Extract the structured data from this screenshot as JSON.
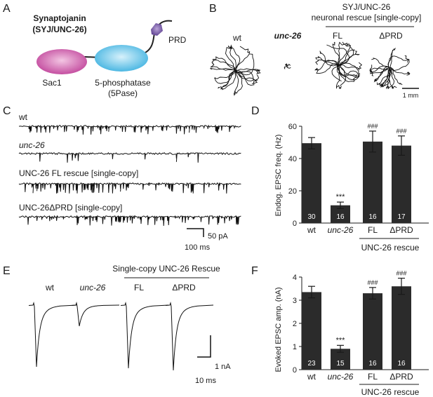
{
  "panels": {
    "A": {
      "letter": "A",
      "title_line1": "Synaptojanin",
      "title_line2": "(SYJ/UNC-26)",
      "labels": {
        "sac1": "Sac1",
        "phosphatase": "5-phosphatase",
        "phosphatase_abbr": "(5Pase)",
        "prd": "PRD"
      },
      "colors": {
        "sac1": "#c0439a",
        "phosphatase": "#3fb2e0",
        "prd": "#6a4b9a"
      }
    },
    "B": {
      "letter": "B",
      "header_line1": "SYJ/UNC-26",
      "header_line2": "neuronal rescue [single-copy]",
      "labels": {
        "wt": "wt",
        "unc26": "unc-26",
        "fl": "FL",
        "dprd": "ΔPRD"
      },
      "scale_label": "1 mm"
    },
    "C": {
      "letter": "C",
      "trace_labels": [
        "wt",
        "unc-26",
        "UNC-26 FL rescue [single-copy]",
        "UNC-26ΔPRD [single-copy]"
      ],
      "scale_y_label": "50 pA",
      "scale_x_label": "100 ms"
    },
    "D": {
      "letter": "D",
      "chart_data": {
        "type": "bar",
        "categories": [
          "wt",
          "unc-26",
          "FL",
          "ΔPRD"
        ],
        "values": [
          49.5,
          11,
          50.5,
          48
        ],
        "errors": [
          3.5,
          2,
          6.5,
          6
        ],
        "n": [
          "30",
          "16",
          "16",
          "17"
        ],
        "annotations": [
          "",
          "***",
          "###",
          "###"
        ],
        "ylabel": "Endog. EPSC freq. (Hz)",
        "group_label": "UNC-26 rescue",
        "ylim": [
          0,
          60
        ],
        "yticks": [
          "0",
          "20",
          "40",
          "60"
        ]
      }
    },
    "E": {
      "letter": "E",
      "header": "Single-copy UNC-26 Rescue",
      "labels": {
        "wt": "wt",
        "unc26": "unc-26",
        "fl": "FL",
        "dprd": "ΔPRD"
      },
      "scale_y_label": "1 nA",
      "scale_x_label": "10 ms"
    },
    "F": {
      "letter": "F",
      "chart_data": {
        "type": "bar",
        "categories": [
          "wt",
          "unc-26",
          "FL",
          "ΔPRD"
        ],
        "values": [
          3.35,
          0.9,
          3.3,
          3.6
        ],
        "errors": [
          0.25,
          0.15,
          0.25,
          0.35
        ],
        "n": [
          "23",
          "15",
          "16",
          "16"
        ],
        "annotations": [
          "",
          "***",
          "###",
          "###"
        ],
        "ylabel": "Evoked EPSC amp. (nA)",
        "group_label": "UNC-26 rescue",
        "ylim": [
          0,
          4
        ],
        "yticks": [
          "0",
          "1",
          "2",
          "3",
          "4"
        ]
      }
    }
  }
}
